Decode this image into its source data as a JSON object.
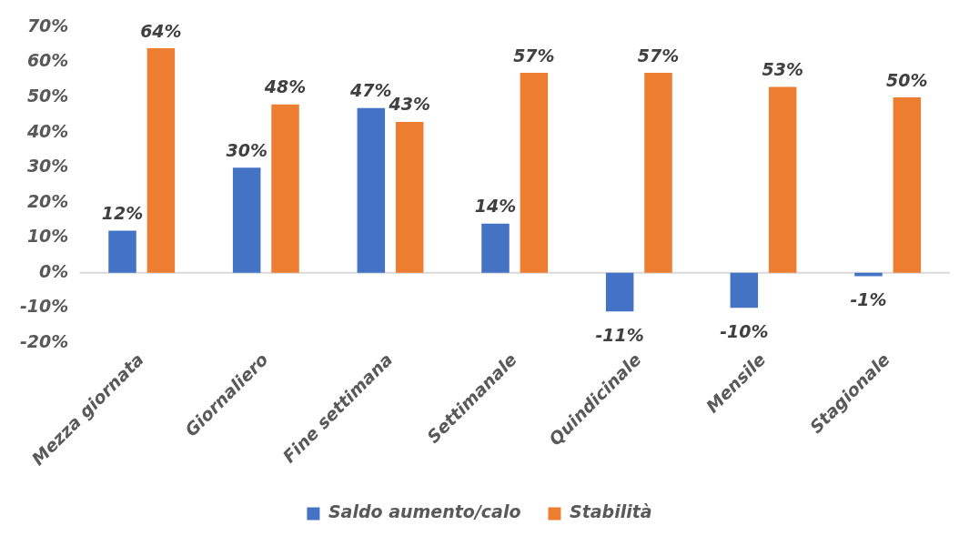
{
  "chart_data": {
    "type": "bar",
    "categories": [
      "Mezza giornata",
      "Giornaliero",
      "Fine settimana",
      "Settimanale",
      "Quindicinale",
      "Mensile",
      "Stagionale"
    ],
    "series": [
      {
        "name": "Saldo aumento/calo",
        "color": "#4472c4",
        "values": [
          12,
          30,
          47,
          14,
          -11,
          -10,
          -1
        ],
        "value_labels": [
          "12%",
          "30%",
          "47%",
          "14%",
          "-11%",
          "-10%",
          "-1%"
        ]
      },
      {
        "name": "Stabilità",
        "color": "#ed7d31",
        "values": [
          64,
          48,
          43,
          57,
          57,
          53,
          50
        ],
        "value_labels": [
          "64%",
          "48%",
          "43%",
          "57%",
          "57%",
          "53%",
          "50%"
        ]
      }
    ],
    "ylim": [
      -20,
      70
    ],
    "yticks": [
      {
        "value": -20,
        "label": "-20%"
      },
      {
        "value": -10,
        "label": "-10%"
      },
      {
        "value": 0,
        "label": "0%"
      },
      {
        "value": 10,
        "label": "10%"
      },
      {
        "value": 20,
        "label": "20%"
      },
      {
        "value": 30,
        "label": "30%"
      },
      {
        "value": 40,
        "label": "40%"
      },
      {
        "value": 50,
        "label": "50%"
      },
      {
        "value": 60,
        "label": "60%"
      },
      {
        "value": 70,
        "label": "70%"
      }
    ],
    "grid": false,
    "ref_lines": [
      {
        "axis": "y",
        "value": 0,
        "color": "#d9d9d9"
      }
    ],
    "legend": "bottom"
  }
}
